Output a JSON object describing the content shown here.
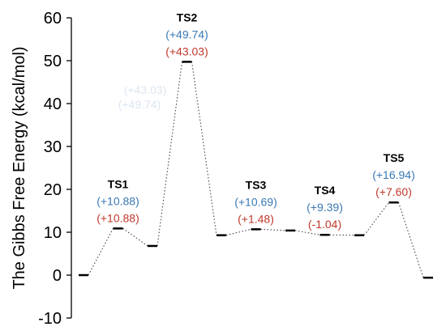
{
  "chart_data": {
    "type": "line",
    "ylabel": "The Gibbs Free Energy (kcal/mol)",
    "ylim": [
      -10,
      60
    ],
    "yticks": [
      -10,
      0,
      10,
      20,
      30,
      40,
      50,
      60
    ],
    "grid": false,
    "colors": {
      "blue_label": "#3a78b4",
      "red_label": "#c0392b",
      "level": "#000000",
      "connector": "#333333",
      "ghost_text": "#dde6f0"
    },
    "levels": [
      {
        "x": 1,
        "y": 0
      },
      {
        "x": 2,
        "y": 10.88
      },
      {
        "x": 3,
        "y": 6.8
      },
      {
        "x": 4,
        "y": 49.74
      },
      {
        "x": 5,
        "y": 9.3
      },
      {
        "x": 6,
        "y": 10.69
      },
      {
        "x": 7,
        "y": 10.4
      },
      {
        "x": 8,
        "y": 9.39
      },
      {
        "x": 9,
        "y": 9.3
      },
      {
        "x": 10,
        "y": 16.94
      },
      {
        "x": 11,
        "y": -0.6
      }
    ],
    "annotations": [
      {
        "name": "TS1",
        "x": 2,
        "blue": "(+10.88)",
        "red": "(+10.88)"
      },
      {
        "name": "TS2",
        "x": 4,
        "blue": "(+49.74)",
        "red": "(+43.03)"
      },
      {
        "name": "TS3",
        "x": 6,
        "blue": "(+10.69)",
        "red": "(+1.48)"
      },
      {
        "name": "TS4",
        "x": 8,
        "blue": "(+9.39)",
        "red": "(-1.04)"
      },
      {
        "name": "TS5",
        "x": 10,
        "blue": "(+16.94)",
        "red": "(+7.60)"
      }
    ],
    "ghost_labels": [
      "(+43.03)",
      "(+49.74)"
    ]
  }
}
